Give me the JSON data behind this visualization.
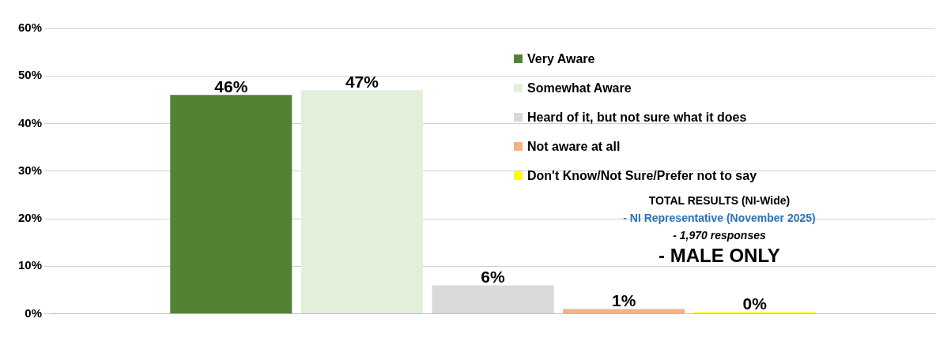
{
  "chart_data": {
    "type": "bar",
    "categories": [
      null
    ],
    "series": [
      {
        "name": "Very Aware",
        "color": "#548235",
        "values": [
          46
        ],
        "value_labels": [
          "46%"
        ]
      },
      {
        "name": "Somewhat Aware",
        "color": "#e2efda",
        "values": [
          47
        ],
        "value_labels": [
          "47%"
        ]
      },
      {
        "name": "Heard of it, but not sure what it does",
        "color": "#d9d9d9",
        "values": [
          6
        ],
        "value_labels": [
          "6%"
        ]
      },
      {
        "name": "Not aware at all",
        "color": "#f4b183",
        "values": [
          1
        ],
        "value_labels": [
          "1%"
        ]
      },
      {
        "name": "Don't Know/Not Sure/Prefer not to say",
        "color": "#ffff00",
        "values": [
          0
        ],
        "value_labels": [
          "0%"
        ]
      }
    ],
    "ylim": [
      0,
      60
    ],
    "yticks": [
      {
        "value": 0,
        "label": "0%"
      },
      {
        "value": 10,
        "label": "10%"
      },
      {
        "value": 20,
        "label": "20%"
      },
      {
        "value": 30,
        "label": "30%"
      },
      {
        "value": 40,
        "label": "40%"
      },
      {
        "value": 50,
        "label": "50%"
      },
      {
        "value": 60,
        "label": "60%"
      }
    ],
    "grid": "y",
    "legend": "top right",
    "annotations": [
      "TOTAL RESULTS (NI-Wide)",
      "- NI Representative (November 2025)",
      "- 1,970 responses",
      "- MALE ONLY"
    ]
  }
}
